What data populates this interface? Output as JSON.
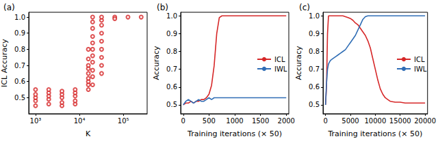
{
  "chart_data": [
    {
      "type": "scatter",
      "title": "(a)",
      "xlabel": "K",
      "ylabel": "ICL Accuracy",
      "log": "x",
      "grid": false,
      "marker": "circle_open",
      "color": "#d62728",
      "xlim": [
        700,
        350000
      ],
      "xticks": [
        {
          "value": 1000,
          "label": "10³"
        },
        {
          "value": 10000,
          "label": "10⁴"
        },
        {
          "value": 100000,
          "label": "10⁵"
        }
      ],
      "ylim": [
        0.4,
        1.03
      ],
      "yticks": [
        0.5,
        0.6,
        0.7,
        0.8,
        0.9,
        {
          "value": 1,
          "label": "1.0"
        }
      ],
      "x": [
        1000,
        1000,
        1000,
        1000,
        1000,
        2000,
        2000,
        2000,
        2000,
        2000,
        4000,
        4000,
        4000,
        4000,
        4000,
        8000,
        8000,
        8000,
        8000,
        8000,
        16000,
        16000,
        16000,
        16000,
        16000,
        16000,
        16000,
        16000,
        16000,
        20000,
        20000,
        20000,
        20000,
        20000,
        20000,
        20000,
        20000,
        20000,
        20000,
        20000,
        32000,
        32000,
        32000,
        32000,
        32000,
        32000,
        32000,
        32000,
        32000,
        64000,
        64000,
        128000,
        256000
      ],
      "values": [
        0.45,
        0.48,
        0.5,
        0.52,
        0.55,
        0.46,
        0.49,
        0.51,
        0.53,
        0.55,
        0.45,
        0.47,
        0.5,
        0.52,
        0.54,
        0.46,
        0.48,
        0.51,
        0.53,
        0.55,
        0.55,
        0.58,
        0.6,
        0.62,
        0.65,
        0.68,
        0.7,
        0.74,
        0.8,
        0.58,
        0.63,
        0.67,
        0.72,
        0.76,
        0.8,
        0.84,
        0.88,
        0.93,
        0.97,
        1.0,
        0.65,
        0.7,
        0.75,
        0.8,
        0.85,
        0.9,
        0.95,
        0.98,
        1.0,
        1.0,
        0.99,
        1.0,
        1.0
      ]
    },
    {
      "type": "line",
      "title": "(b)",
      "xlabel": "Training iterations (× 50)",
      "ylabel": "Accuracy",
      "grid": false,
      "legend": "right",
      "xlim": [
        -50,
        2050
      ],
      "xticks": [
        0,
        500,
        1000,
        1500,
        2000
      ],
      "ylim": [
        0.45,
        1.02
      ],
      "yticks": [
        0.5,
        0.6,
        0.7,
        0.8,
        0.9,
        {
          "value": 1,
          "label": "1.0"
        }
      ],
      "x": [
        0,
        50,
        100,
        150,
        200,
        250,
        300,
        350,
        400,
        450,
        500,
        550,
        600,
        650,
        700,
        750,
        800,
        850,
        900,
        950,
        1000,
        1050,
        1100,
        1150,
        1200,
        1250,
        1300,
        1350,
        1400,
        1450,
        1500,
        1550,
        1600,
        1650,
        1700,
        1750,
        1800,
        1850,
        1900,
        1950,
        2000
      ],
      "series": [
        {
          "name": "ICL",
          "color": "#d62728",
          "values": [
            0.5,
            0.51,
            0.51,
            0.52,
            0.51,
            0.52,
            0.52,
            0.53,
            0.53,
            0.54,
            0.56,
            0.61,
            0.72,
            0.9,
            0.99,
            1.0,
            1.0,
            1.0,
            1.0,
            1.0,
            1.0,
            1.0,
            1.0,
            1.0,
            1.0,
            1.0,
            1.0,
            1.0,
            1.0,
            1.0,
            1.0,
            1.0,
            1.0,
            1.0,
            1.0,
            1.0,
            1.0,
            1.0,
            1.0,
            1.0,
            1.0
          ]
        },
        {
          "name": "IWL",
          "color": "#2f6db5",
          "values": [
            0.5,
            0.52,
            0.53,
            0.52,
            0.51,
            0.52,
            0.53,
            0.52,
            0.52,
            0.53,
            0.54,
            0.53,
            0.54,
            0.54,
            0.54,
            0.54,
            0.54,
            0.54,
            0.54,
            0.54,
            0.54,
            0.54,
            0.54,
            0.54,
            0.54,
            0.54,
            0.54,
            0.54,
            0.54,
            0.54,
            0.54,
            0.54,
            0.54,
            0.54,
            0.54,
            0.54,
            0.54,
            0.54,
            0.54,
            0.54,
            0.54
          ]
        }
      ]
    },
    {
      "type": "line",
      "title": "(c)",
      "xlabel": "Training iterations (× 50)",
      "ylabel": "Accuracy",
      "grid": false,
      "legend": "right",
      "xlim": [
        -500,
        20500
      ],
      "xticks": [
        0,
        5000,
        10000,
        15000,
        20000
      ],
      "ylim": [
        0.45,
        1.02
      ],
      "yticks": [
        0.5,
        0.6,
        0.7,
        0.8,
        0.9,
        {
          "value": 1,
          "label": "1.0"
        }
      ],
      "x": [
        0,
        200,
        400,
        600,
        800,
        1000,
        1500,
        2000,
        2500,
        3000,
        3500,
        4000,
        4500,
        5000,
        5500,
        6000,
        6500,
        7000,
        7500,
        8000,
        8500,
        9000,
        9500,
        10000,
        10500,
        11000,
        11500,
        12000,
        12500,
        13000,
        14000,
        15000,
        16000,
        17000,
        18000,
        19000,
        20000
      ],
      "series": [
        {
          "name": "ICL",
          "color": "#d62728",
          "values": [
            0.5,
            0.6,
            0.9,
            1.0,
            1.0,
            1.0,
            1.0,
            1.0,
            1.0,
            1.0,
            1.0,
            0.995,
            0.99,
            0.985,
            0.975,
            0.96,
            0.95,
            0.93,
            0.91,
            0.89,
            0.86,
            0.82,
            0.76,
            0.7,
            0.64,
            0.59,
            0.56,
            0.54,
            0.53,
            0.52,
            0.515,
            0.515,
            0.51,
            0.51,
            0.51,
            0.51,
            0.51
          ]
        },
        {
          "name": "IWL",
          "color": "#2f6db5",
          "values": [
            0.5,
            0.62,
            0.7,
            0.73,
            0.74,
            0.75,
            0.76,
            0.77,
            0.78,
            0.79,
            0.8,
            0.81,
            0.83,
            0.85,
            0.87,
            0.89,
            0.92,
            0.95,
            0.98,
            0.995,
            1.0,
            1.0,
            1.0,
            1.0,
            1.0,
            1.0,
            1.0,
            1.0,
            1.0,
            1.0,
            1.0,
            1.0,
            1.0,
            1.0,
            1.0,
            1.0,
            1.0
          ]
        }
      ]
    }
  ]
}
